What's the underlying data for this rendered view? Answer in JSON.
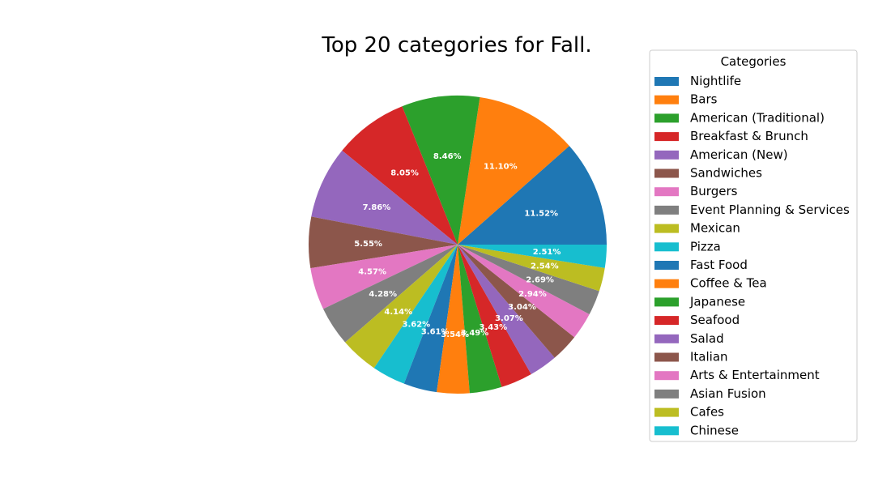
{
  "chart_data": {
    "type": "pie",
    "title": "Top 20 categories for Fall.",
    "legend_title": "Categories",
    "legend_position": "right",
    "start_angle_deg": 0,
    "direction": "counterclockwise",
    "slices": [
      {
        "label": "Nightlife",
        "value": 11.52,
        "text": "11.52%",
        "color": "#1f77b4"
      },
      {
        "label": "Bars",
        "value": 11.1,
        "text": "11.10%",
        "color": "#ff7f0e"
      },
      {
        "label": "American (Traditional)",
        "value": 8.46,
        "text": "8.46%",
        "color": "#2ca02c"
      },
      {
        "label": "Breakfast & Brunch",
        "value": 8.05,
        "text": "8.05%",
        "color": "#d62728"
      },
      {
        "label": "American (New)",
        "value": 7.86,
        "text": "7.86%",
        "color": "#9467bd"
      },
      {
        "label": "Sandwiches",
        "value": 5.55,
        "text": "5.55%",
        "color": "#8c564b"
      },
      {
        "label": "Burgers",
        "value": 4.57,
        "text": "4.57%",
        "color": "#e377c2"
      },
      {
        "label": "Event Planning & Services",
        "value": 4.28,
        "text": "4.28%",
        "color": "#7f7f7f"
      },
      {
        "label": "Mexican",
        "value": 4.14,
        "text": "4.14%",
        "color": "#bcbd22"
      },
      {
        "label": "Pizza",
        "value": 3.62,
        "text": "3.62%",
        "color": "#17becf"
      },
      {
        "label": "Fast Food",
        "value": 3.61,
        "text": "3.61%",
        "color": "#1f77b4"
      },
      {
        "label": "Coffee & Tea",
        "value": 3.54,
        "text": "3.54%",
        "color": "#ff7f0e"
      },
      {
        "label": "Japanese",
        "value": 3.49,
        "text": "3.49%",
        "color": "#2ca02c"
      },
      {
        "label": "Seafood",
        "value": 3.43,
        "text": "3.43%",
        "color": "#d62728"
      },
      {
        "label": "Salad",
        "value": 3.07,
        "text": "3.07%",
        "color": "#9467bd"
      },
      {
        "label": "Italian",
        "value": 3.04,
        "text": "3.04%",
        "color": "#8c564b"
      },
      {
        "label": "Arts & Entertainment",
        "value": 2.94,
        "text": "2.94%",
        "color": "#e377c2"
      },
      {
        "label": "Asian Fusion",
        "value": 2.69,
        "text": "2.69%",
        "color": "#7f7f7f"
      },
      {
        "label": "Cafes",
        "value": 2.54,
        "text": "2.54%",
        "color": "#bcbd22"
      },
      {
        "label": "Chinese",
        "value": 2.51,
        "text": "2.51%",
        "color": "#17becf"
      }
    ]
  }
}
